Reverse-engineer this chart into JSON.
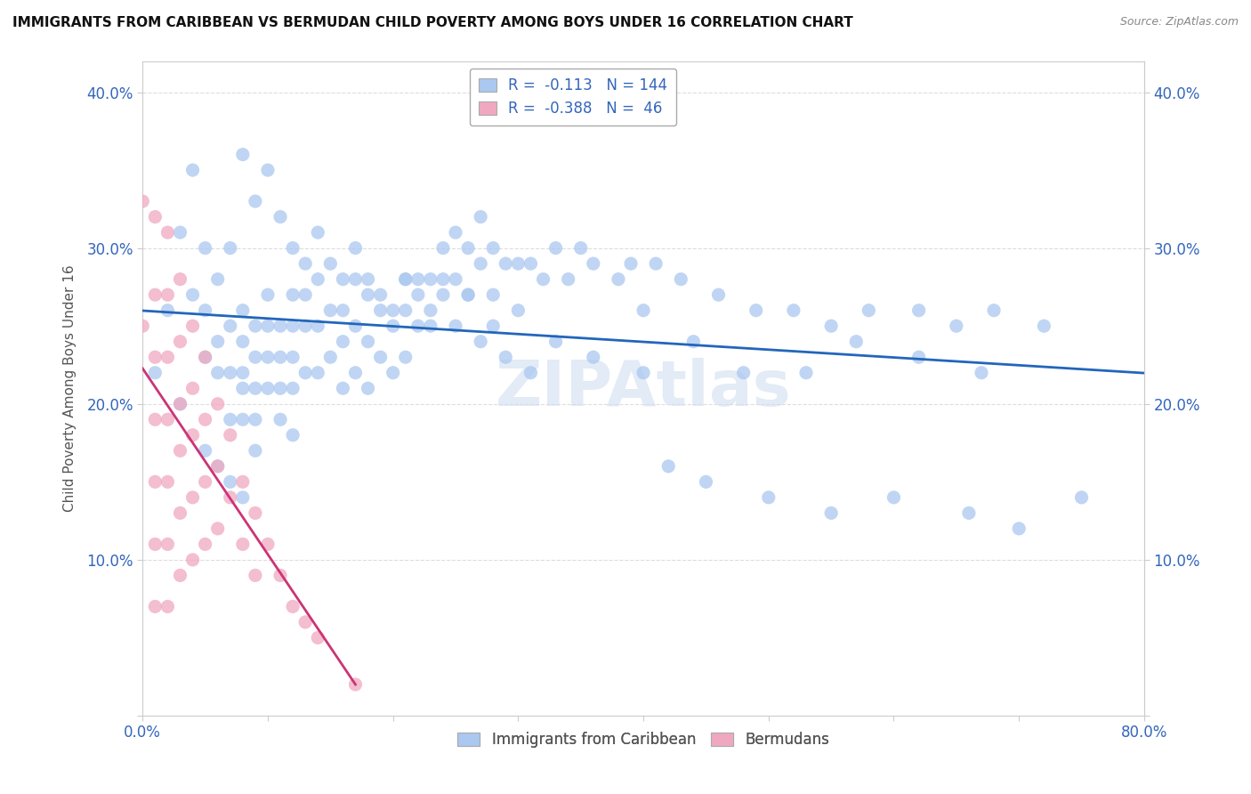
{
  "title": "IMMIGRANTS FROM CARIBBEAN VS BERMUDAN CHILD POVERTY AMONG BOYS UNDER 16 CORRELATION CHART",
  "source": "Source: ZipAtlas.com",
  "ylabel": "Child Poverty Among Boys Under 16",
  "xlim": [
    0.0,
    0.8
  ],
  "ylim": [
    0.0,
    0.42
  ],
  "xticks": [
    0.0,
    0.1,
    0.2,
    0.3,
    0.4,
    0.5,
    0.6,
    0.7,
    0.8
  ],
  "yticks": [
    0.0,
    0.1,
    0.2,
    0.3,
    0.4
  ],
  "legend_blue_r": "-0.113",
  "legend_blue_n": "144",
  "legend_pink_r": "-0.388",
  "legend_pink_n": "46",
  "blue_color": "#aac8f0",
  "pink_color": "#f0a8c0",
  "blue_line_color": "#2266bb",
  "pink_line_color": "#cc3377",
  "blue_scatter_x": [
    0.01,
    0.02,
    0.03,
    0.03,
    0.04,
    0.04,
    0.05,
    0.05,
    0.05,
    0.06,
    0.06,
    0.06,
    0.07,
    0.07,
    0.07,
    0.07,
    0.08,
    0.08,
    0.08,
    0.08,
    0.08,
    0.09,
    0.09,
    0.09,
    0.09,
    0.09,
    0.1,
    0.1,
    0.1,
    0.1,
    0.11,
    0.11,
    0.11,
    0.11,
    0.12,
    0.12,
    0.12,
    0.12,
    0.12,
    0.13,
    0.13,
    0.13,
    0.14,
    0.14,
    0.14,
    0.15,
    0.15,
    0.16,
    0.16,
    0.16,
    0.17,
    0.17,
    0.17,
    0.18,
    0.18,
    0.18,
    0.19,
    0.19,
    0.2,
    0.2,
    0.21,
    0.21,
    0.21,
    0.22,
    0.22,
    0.23,
    0.23,
    0.24,
    0.24,
    0.25,
    0.25,
    0.26,
    0.26,
    0.27,
    0.27,
    0.28,
    0.28,
    0.29,
    0.3,
    0.3,
    0.31,
    0.32,
    0.33,
    0.34,
    0.35,
    0.36,
    0.38,
    0.39,
    0.4,
    0.41,
    0.43,
    0.46,
    0.49,
    0.52,
    0.55,
    0.58,
    0.62,
    0.65,
    0.68,
    0.72,
    0.08,
    0.09,
    0.1,
    0.11,
    0.12,
    0.13,
    0.14,
    0.15,
    0.16,
    0.17,
    0.18,
    0.19,
    0.2,
    0.21,
    0.22,
    0.23,
    0.24,
    0.25,
    0.26,
    0.27,
    0.28,
    0.29,
    0.31,
    0.33,
    0.36,
    0.4,
    0.44,
    0.48,
    0.53,
    0.57,
    0.62,
    0.67,
    0.42,
    0.45,
    0.5,
    0.55,
    0.6,
    0.66,
    0.7,
    0.75,
    0.05,
    0.06,
    0.07,
    0.08
  ],
  "blue_scatter_y": [
    0.22,
    0.26,
    0.31,
    0.2,
    0.35,
    0.27,
    0.3,
    0.23,
    0.26,
    0.28,
    0.24,
    0.22,
    0.3,
    0.25,
    0.22,
    0.19,
    0.26,
    0.24,
    0.22,
    0.21,
    0.19,
    0.25,
    0.23,
    0.21,
    0.19,
    0.17,
    0.27,
    0.25,
    0.23,
    0.21,
    0.25,
    0.23,
    0.21,
    0.19,
    0.27,
    0.25,
    0.23,
    0.21,
    0.18,
    0.27,
    0.25,
    0.22,
    0.28,
    0.25,
    0.22,
    0.26,
    0.23,
    0.26,
    0.24,
    0.21,
    0.28,
    0.25,
    0.22,
    0.27,
    0.24,
    0.21,
    0.26,
    0.23,
    0.25,
    0.22,
    0.28,
    0.26,
    0.23,
    0.28,
    0.25,
    0.28,
    0.25,
    0.3,
    0.27,
    0.31,
    0.28,
    0.3,
    0.27,
    0.32,
    0.29,
    0.3,
    0.27,
    0.29,
    0.29,
    0.26,
    0.29,
    0.28,
    0.3,
    0.28,
    0.3,
    0.29,
    0.28,
    0.29,
    0.26,
    0.29,
    0.28,
    0.27,
    0.26,
    0.26,
    0.25,
    0.26,
    0.26,
    0.25,
    0.26,
    0.25,
    0.36,
    0.33,
    0.35,
    0.32,
    0.3,
    0.29,
    0.31,
    0.29,
    0.28,
    0.3,
    0.28,
    0.27,
    0.26,
    0.28,
    0.27,
    0.26,
    0.28,
    0.25,
    0.27,
    0.24,
    0.25,
    0.23,
    0.22,
    0.24,
    0.23,
    0.22,
    0.24,
    0.22,
    0.22,
    0.24,
    0.23,
    0.22,
    0.16,
    0.15,
    0.14,
    0.13,
    0.14,
    0.13,
    0.12,
    0.14,
    0.17,
    0.16,
    0.15,
    0.14
  ],
  "pink_scatter_x": [
    0.0,
    0.0,
    0.01,
    0.01,
    0.01,
    0.01,
    0.01,
    0.01,
    0.01,
    0.02,
    0.02,
    0.02,
    0.02,
    0.02,
    0.02,
    0.02,
    0.03,
    0.03,
    0.03,
    0.03,
    0.03,
    0.03,
    0.04,
    0.04,
    0.04,
    0.04,
    0.04,
    0.05,
    0.05,
    0.05,
    0.05,
    0.06,
    0.06,
    0.06,
    0.07,
    0.07,
    0.08,
    0.08,
    0.09,
    0.09,
    0.1,
    0.11,
    0.12,
    0.13,
    0.14,
    0.17
  ],
  "pink_scatter_y": [
    0.33,
    0.25,
    0.32,
    0.27,
    0.23,
    0.19,
    0.15,
    0.11,
    0.07,
    0.31,
    0.27,
    0.23,
    0.19,
    0.15,
    0.11,
    0.07,
    0.28,
    0.24,
    0.2,
    0.17,
    0.13,
    0.09,
    0.25,
    0.21,
    0.18,
    0.14,
    0.1,
    0.23,
    0.19,
    0.15,
    0.11,
    0.2,
    0.16,
    0.12,
    0.18,
    0.14,
    0.15,
    0.11,
    0.13,
    0.09,
    0.11,
    0.09,
    0.07,
    0.06,
    0.05,
    0.02
  ]
}
